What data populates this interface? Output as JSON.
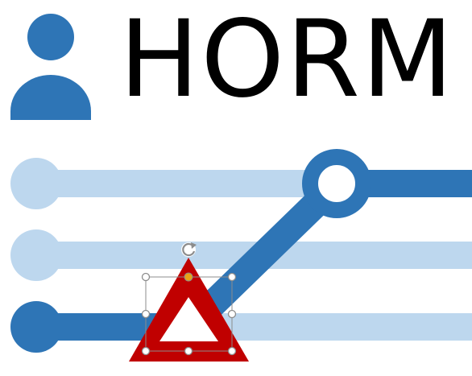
{
  "title": "HORM",
  "icons": {
    "person": "person-icon",
    "rotate_handle": "rotate-icon",
    "warning_triangle": "warning-triangle-icon"
  },
  "colors": {
    "primary_blue": "#2E75B6",
    "light_blue": "#BDD7EE",
    "triangle_red": "#C00000",
    "handle_gray": "#8C8C8C",
    "adjust_handle": "#E8A317",
    "title_text": "#000000"
  },
  "diagram": {
    "lines": [
      {
        "id": "top",
        "state": "inactive"
      },
      {
        "id": "middle",
        "state": "inactive"
      },
      {
        "id": "bottom",
        "state": "active"
      }
    ],
    "connector": {
      "from": "bottom",
      "to": "top"
    },
    "selected_shape": "warning-triangle"
  }
}
